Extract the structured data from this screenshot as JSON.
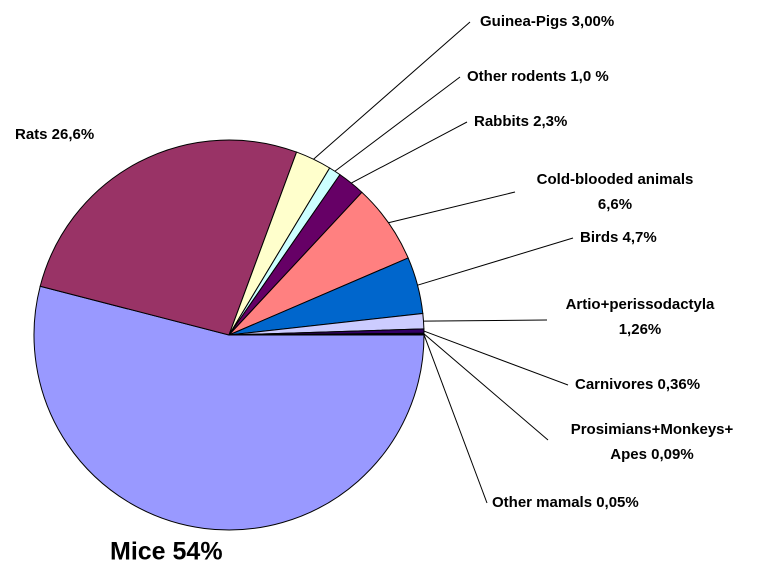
{
  "chart_data": {
    "type": "pie",
    "categories": [
      "Mice",
      "Rats",
      "Guinea-Pigs",
      "Other rodents",
      "Rabbits",
      "Cold-blooded animals",
      "Birds",
      "Artio+perissodactyla",
      "Carnivores",
      "Prosimians+Monkeys+Apes",
      "Other mamals"
    ],
    "values": [
      54,
      26.6,
      3.0,
      1.0,
      2.3,
      6.6,
      4.7,
      1.26,
      0.36,
      0.09,
      0.05
    ],
    "value_labels": [
      [
        "Mice 54%"
      ],
      [
        "Rats 26,6%"
      ],
      [
        "Guinea-Pigs 3,00%"
      ],
      [
        "Other rodents 1,0 %"
      ],
      [
        "Rabbits 2,3%"
      ],
      [
        "Cold-blooded animals",
        "6,6%"
      ],
      [
        "Birds 4,7%"
      ],
      [
        "Artio+perissodactyla",
        "1,26%"
      ],
      [
        "Carnivores 0,36%"
      ],
      [
        "Prosimians+Monkeys+",
        "Apes 0,09%"
      ],
      [
        "Other mamals 0,05%"
      ]
    ],
    "colors": [
      "#9999ff",
      "#993366",
      "#ffffcc",
      "#ccffff",
      "#660066",
      "#ff8080",
      "#0066cc",
      "#ccccff",
      "#330066",
      "#000080",
      "#ff00ff"
    ]
  }
}
